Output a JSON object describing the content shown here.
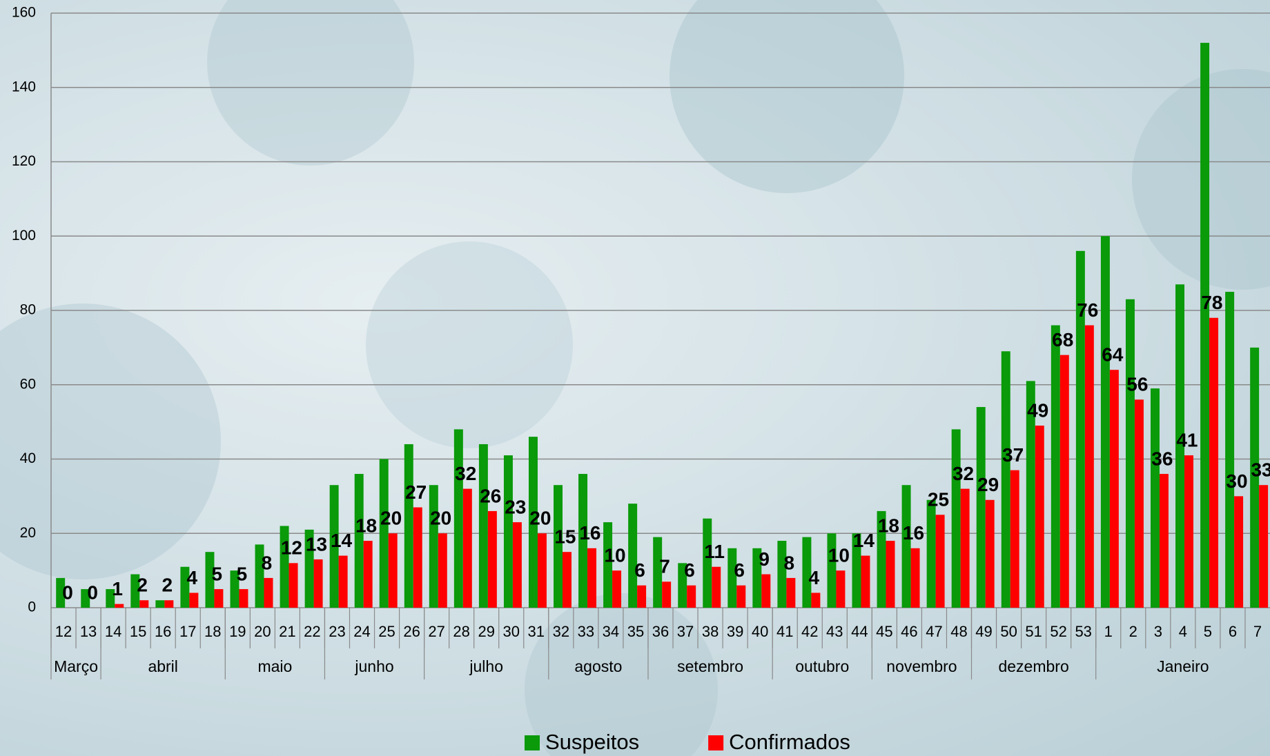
{
  "chart_data": {
    "type": "bar",
    "categories": [
      "12",
      "13",
      "14",
      "15",
      "16",
      "17",
      "18",
      "19",
      "20",
      "21",
      "22",
      "23",
      "24",
      "25",
      "26",
      "27",
      "28",
      "29",
      "30",
      "31",
      "32",
      "33",
      "34",
      "35",
      "36",
      "37",
      "38",
      "39",
      "40",
      "41",
      "42",
      "43",
      "44",
      "45",
      "46",
      "47",
      "48",
      "49",
      "50",
      "51",
      "52",
      "53",
      "1",
      "2",
      "3",
      "4",
      "5",
      "6",
      "7"
    ],
    "category_groups": [
      {
        "label": "Março",
        "span": 2
      },
      {
        "label": "abril",
        "span": 5
      },
      {
        "label": "maio",
        "span": 4
      },
      {
        "label": "junho",
        "span": 4
      },
      {
        "label": "julho",
        "span": 5
      },
      {
        "label": "agosto",
        "span": 4
      },
      {
        "label": "setembro",
        "span": 5
      },
      {
        "label": "outubro",
        "span": 4
      },
      {
        "label": "novembro",
        "span": 4
      },
      {
        "label": "dezembro",
        "span": 5
      },
      {
        "label": "Janeiro",
        "span": 7
      }
    ],
    "series": [
      {
        "name": "Suspeitos",
        "color": "#0a9a0a",
        "values": [
          8,
          5,
          5,
          9,
          2,
          11,
          15,
          10,
          17,
          22,
          21,
          33,
          36,
          40,
          44,
          33,
          48,
          44,
          41,
          46,
          33,
          36,
          23,
          28,
          19,
          12,
          24,
          16,
          16,
          18,
          19,
          20,
          20,
          26,
          33,
          29,
          48,
          54,
          69,
          61,
          76,
          96,
          100,
          83,
          59,
          87,
          152,
          85,
          70
        ]
      },
      {
        "name": "Confirmados",
        "color": "#ff0000",
        "data_labels": true,
        "values": [
          0,
          0,
          1,
          2,
          2,
          4,
          5,
          5,
          8,
          12,
          13,
          14,
          18,
          20,
          27,
          20,
          32,
          26,
          23,
          20,
          15,
          16,
          10,
          6,
          7,
          6,
          11,
          6,
          9,
          8,
          4,
          10,
          14,
          18,
          16,
          25,
          32,
          29,
          37,
          49,
          68,
          76,
          64,
          56,
          36,
          41,
          78,
          30,
          33
        ]
      }
    ],
    "ylim": [
      0,
      160
    ],
    "yticks": [
      0,
      20,
      40,
      60,
      80,
      100,
      120,
      140,
      160
    ],
    "grid": true,
    "legend": "bottom"
  }
}
